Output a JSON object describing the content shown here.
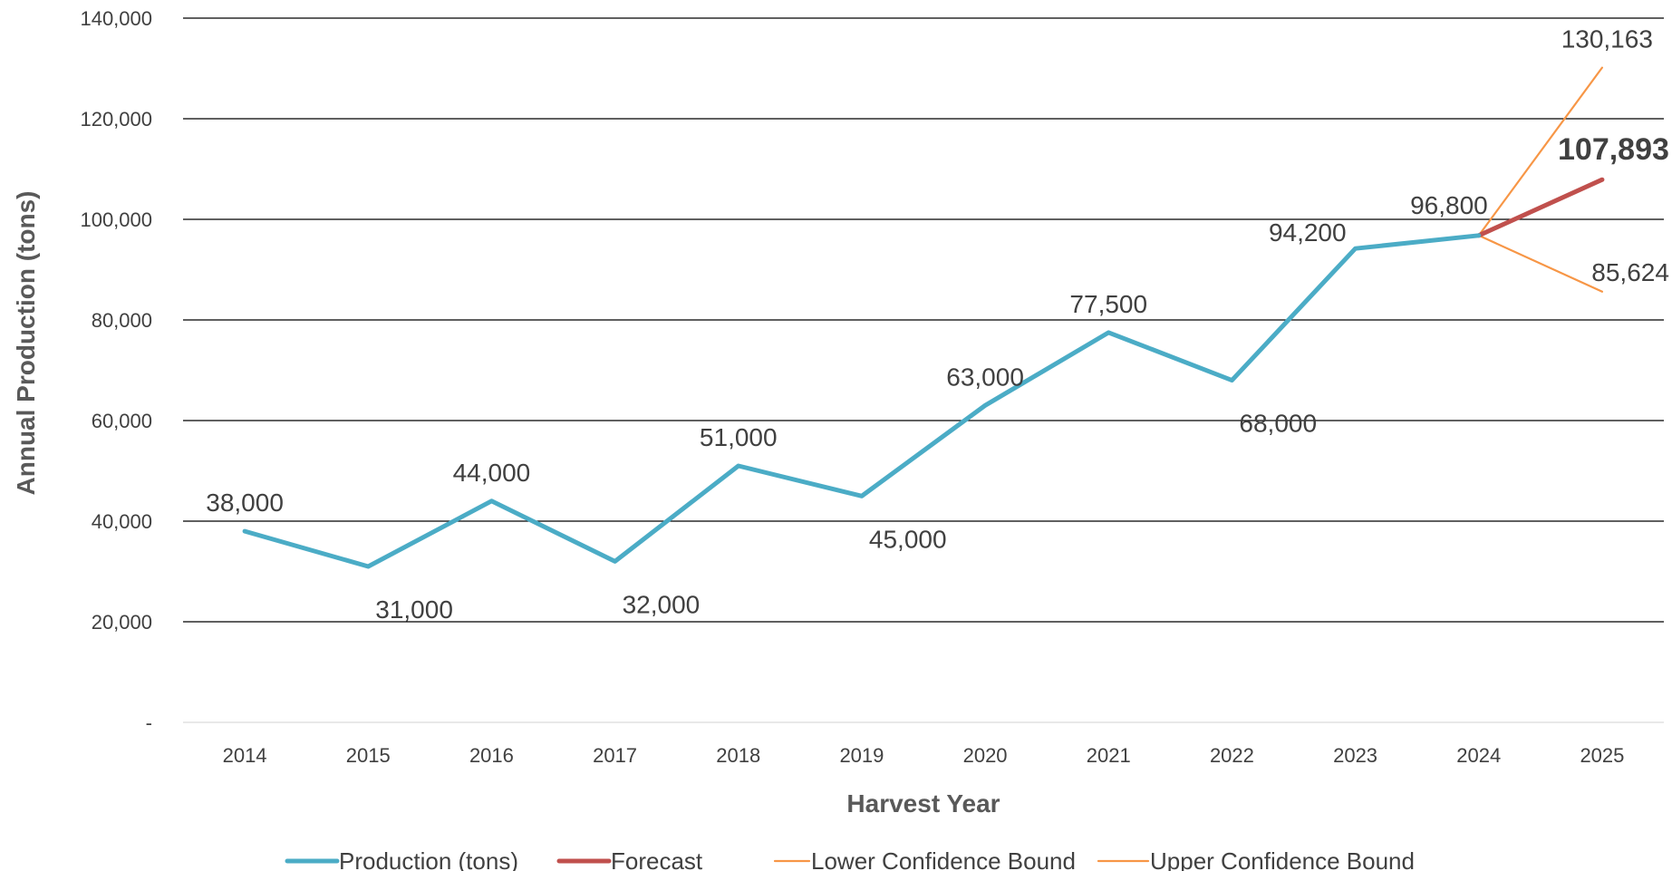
{
  "chart_data": {
    "type": "line",
    "title": "",
    "xlabel": "Harvest Year",
    "ylabel": "Annual Production (tons)",
    "ylim": [
      0,
      140000
    ],
    "y_ticks": [
      {
        "value": 0,
        "label": "-"
      },
      {
        "value": 20000,
        "label": "20,000"
      },
      {
        "value": 40000,
        "label": "40,000"
      },
      {
        "value": 60000,
        "label": "60,000"
      },
      {
        "value": 80000,
        "label": "80,000"
      },
      {
        "value": 100000,
        "label": "100,000"
      },
      {
        "value": 120000,
        "label": "120,000"
      },
      {
        "value": 140000,
        "label": "140,000"
      }
    ],
    "categories": [
      "2014",
      "2015",
      "2016",
      "2017",
      "2018",
      "2019",
      "2020",
      "2021",
      "2022",
      "2023",
      "2024",
      "2025"
    ],
    "grid": true,
    "legend_position": "bottom",
    "series": [
      {
        "name": "Production (tons)",
        "color": "#4BACC6",
        "values": [
          38000,
          31000,
          44000,
          32000,
          51000,
          45000,
          63000,
          77500,
          68000,
          94200,
          96800,
          null
        ],
        "labels": [
          "38,000",
          "31,000",
          "44,000",
          "32,000",
          "51,000",
          "45,000",
          "63,000",
          "77,500",
          "68,000",
          "94,200",
          "96,800",
          null
        ],
        "label_pos": [
          "above",
          "below",
          "above",
          "below",
          "above",
          "below",
          "above",
          "above",
          "below",
          "above",
          "above",
          null
        ]
      },
      {
        "name": "Forecast",
        "color": "#C0504D",
        "values": [
          null,
          null,
          null,
          null,
          null,
          null,
          null,
          null,
          null,
          null,
          96800,
          107893
        ],
        "labels": [
          null,
          null,
          null,
          null,
          null,
          null,
          null,
          null,
          null,
          null,
          null,
          "107,893"
        ],
        "label_pos": [
          null,
          null,
          null,
          null,
          null,
          null,
          null,
          null,
          null,
          null,
          null,
          "above-bold"
        ]
      },
      {
        "name": "Lower Confidence Bound",
        "color": "#F79646",
        "values": [
          null,
          null,
          null,
          null,
          null,
          null,
          null,
          null,
          null,
          null,
          96800,
          85624
        ],
        "labels": [
          null,
          null,
          null,
          null,
          null,
          null,
          null,
          null,
          null,
          null,
          null,
          "85,624"
        ],
        "label_pos": [
          null,
          null,
          null,
          null,
          null,
          null,
          null,
          null,
          null,
          null,
          null,
          "above"
        ]
      },
      {
        "name": "Upper Confidence Bound",
        "color": "#F79646",
        "values": [
          null,
          null,
          null,
          null,
          null,
          null,
          null,
          null,
          null,
          null,
          96800,
          130163
        ],
        "labels": [
          null,
          null,
          null,
          null,
          null,
          null,
          null,
          null,
          null,
          null,
          null,
          "130,163"
        ],
        "label_pos": [
          null,
          null,
          null,
          null,
          null,
          null,
          null,
          null,
          null,
          null,
          null,
          "above"
        ]
      }
    ]
  }
}
